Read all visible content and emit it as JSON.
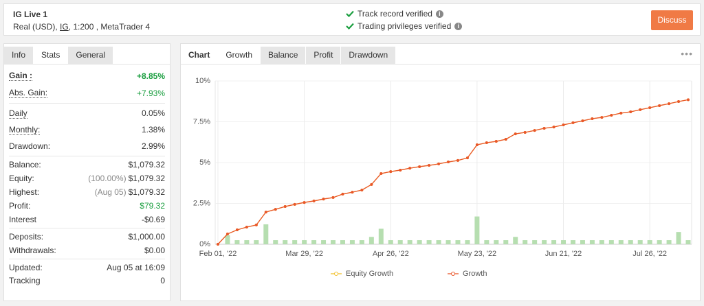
{
  "header": {
    "title": "IG Live 1",
    "account_type": "Real (USD)",
    "broker": "IG",
    "leverage": "1:200",
    "platform": "MetaTrader 4",
    "verifications": [
      "Track record verified",
      "Trading privileges verified"
    ],
    "button": "Discuss"
  },
  "stats": {
    "tabs": [
      "Info",
      "Stats",
      "General"
    ],
    "active_tab": 1,
    "groups": [
      {
        "rows": [
          {
            "label": "Gain :",
            "value": "+8.85%",
            "color": "#1a9e3f",
            "bold": true,
            "dotted": true
          },
          {
            "label": "Abs. Gain:",
            "value": "+7.93%",
            "color": "#1a9e3f",
            "dotted": true
          }
        ]
      },
      {
        "rows": [
          {
            "label": "Daily",
            "value": "0.05%",
            "dotted": true
          },
          {
            "label": "Monthly:",
            "value": "1.38%",
            "dotted": true
          },
          {
            "label": "Drawdown:",
            "value": "2.99%"
          }
        ]
      },
      {
        "rows": [
          {
            "label": "Balance:",
            "value": "$1,079.32"
          },
          {
            "label": "Equity:",
            "note": "(100.00%)",
            "value": "$1,079.32"
          },
          {
            "label": "Highest:",
            "note": "(Aug 05)",
            "value": "$1,079.32"
          },
          {
            "label": "Profit:",
            "value": "$79.32",
            "color": "#1a9e3f"
          },
          {
            "label": "Interest",
            "value": "-$0.69"
          }
        ]
      },
      {
        "rows": [
          {
            "label": "Deposits:",
            "value": "$1,000.00"
          },
          {
            "label": "Withdrawals:",
            "value": "$0.00"
          }
        ]
      },
      {
        "rows": [
          {
            "label": "Updated:",
            "value": "Aug 05 at 16:09"
          },
          {
            "label": "Tracking",
            "value": "0"
          }
        ]
      }
    ]
  },
  "chart_panel": {
    "label": "Chart",
    "tabs": [
      "Growth",
      "Balance",
      "Profit",
      "Drawdown"
    ],
    "active_tab": 0
  },
  "chart_data": {
    "type": "line",
    "categories": [
      "Feb 01, '22",
      null,
      null,
      null,
      null,
      null,
      null,
      null,
      null,
      "Mar 29, '22",
      null,
      null,
      null,
      null,
      null,
      null,
      null,
      null,
      "Apr 26, '22",
      null,
      null,
      null,
      null,
      null,
      null,
      null,
      null,
      "May 23, '22",
      null,
      null,
      null,
      null,
      null,
      null,
      null,
      null,
      "Jun 21, '22",
      null,
      null,
      null,
      null,
      null,
      null,
      null,
      null,
      "Jul 26, '22",
      null,
      null,
      null,
      null
    ],
    "series": [
      {
        "name": "Equity Growth",
        "color": "#f2c12e",
        "values": [
          0,
          0.63,
          0.88,
          1.05,
          1.18,
          1.97,
          2.14,
          2.31,
          2.44,
          2.56,
          2.65,
          2.77,
          2.86,
          3.07,
          3.19,
          3.32,
          3.66,
          4.33,
          4.45,
          4.54,
          4.66,
          4.75,
          4.83,
          4.92,
          5.04,
          5.13,
          5.29,
          6.09,
          6.22,
          6.3,
          6.43,
          6.76,
          6.85,
          6.97,
          7.1,
          7.18,
          7.31,
          7.44,
          7.56,
          7.69,
          7.77,
          7.9,
          8.03,
          8.11,
          8.24,
          8.36,
          8.49,
          8.61,
          8.74,
          8.85
        ]
      },
      {
        "name": "Growth",
        "color": "#e9572b",
        "values": [
          0,
          0.63,
          0.88,
          1.05,
          1.18,
          1.97,
          2.14,
          2.31,
          2.44,
          2.56,
          2.65,
          2.77,
          2.86,
          3.07,
          3.19,
          3.32,
          3.66,
          4.33,
          4.45,
          4.54,
          4.66,
          4.75,
          4.83,
          4.92,
          5.04,
          5.13,
          5.29,
          6.09,
          6.22,
          6.3,
          6.43,
          6.76,
          6.85,
          6.97,
          7.1,
          7.18,
          7.31,
          7.44,
          7.56,
          7.69,
          7.77,
          7.9,
          8.03,
          8.11,
          8.24,
          8.36,
          8.49,
          8.61,
          8.74,
          8.85
        ]
      }
    ],
    "bars": {
      "color": "#b6deb0",
      "values": [
        0,
        0.55,
        0.25,
        0.25,
        0.25,
        1.22,
        0.25,
        0.25,
        0.25,
        0.25,
        0.25,
        0.25,
        0.25,
        0.25,
        0.25,
        0.25,
        0.45,
        0.95,
        0.25,
        0.25,
        0.25,
        0.25,
        0.25,
        0.25,
        0.25,
        0.25,
        0.25,
        1.7,
        0.25,
        0.25,
        0.25,
        0.45,
        0.25,
        0.25,
        0.25,
        0.25,
        0.25,
        0.25,
        0.25,
        0.25,
        0.25,
        0.25,
        0.25,
        0.25,
        0.25,
        0.25,
        0.25,
        0.25,
        0.75,
        0.25
      ]
    },
    "ylim": [
      0,
      10
    ],
    "yticks": [
      {
        "value": 0,
        "label": "0%"
      },
      {
        "value": 2.5,
        "label": "2.5%"
      },
      {
        "value": 5,
        "label": "5%"
      },
      {
        "value": 7.5,
        "label": "7.5%"
      },
      {
        "value": 10,
        "label": "10%"
      }
    ],
    "grid": true
  }
}
